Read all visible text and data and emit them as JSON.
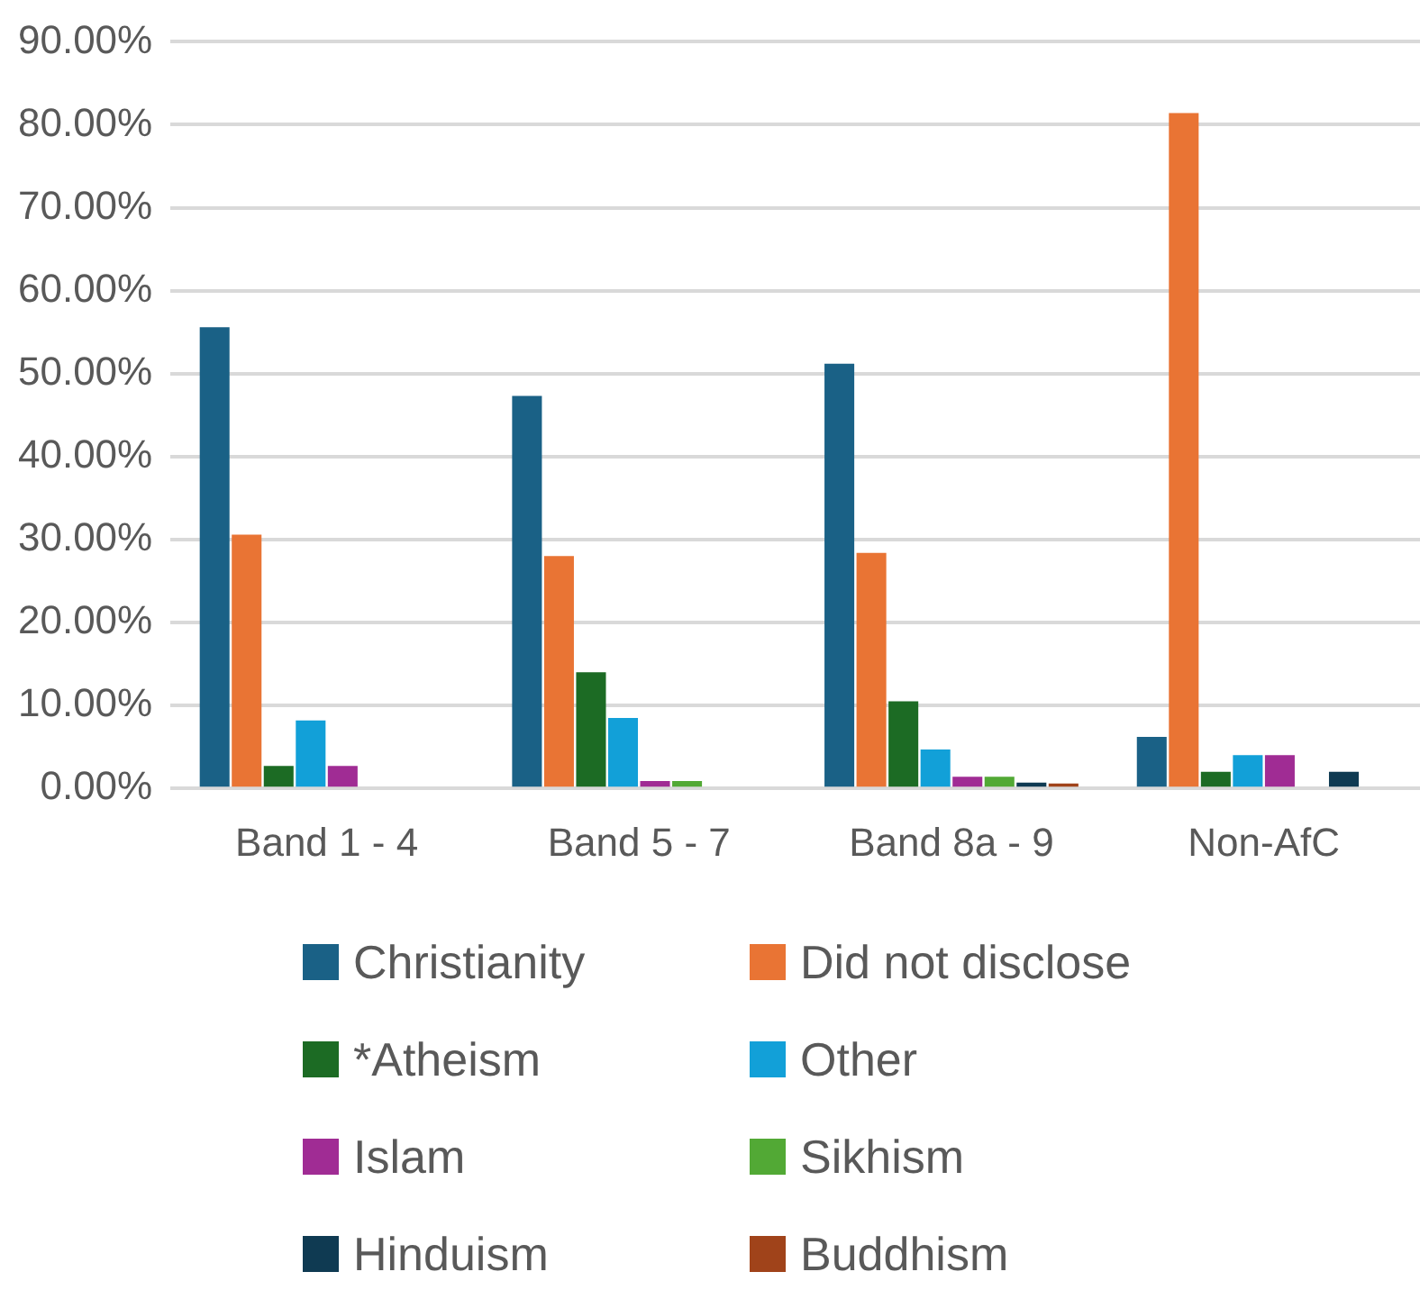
{
  "chart_data": {
    "type": "bar",
    "categories": [
      "Band 1 - 4",
      "Band 5 - 7",
      "Band 8a - 9",
      "Non-AfC"
    ],
    "series": [
      {
        "name": "Christianity",
        "color": "#1a6186",
        "values": [
          55.6,
          47.3,
          51.2,
          6.2
        ]
      },
      {
        "name": "Did not disclose",
        "color": "#e97434",
        "values": [
          30.6,
          28.0,
          28.4,
          81.4
        ]
      },
      {
        "name": "*Atheism",
        "color": "#1c6b24",
        "values": [
          2.7,
          14.0,
          10.5,
          2.0
        ]
      },
      {
        "name": "Other",
        "color": "#12a0d8",
        "values": [
          8.2,
          8.5,
          4.7,
          4.0
        ]
      },
      {
        "name": "Islam",
        "color": "#a02c94",
        "values": [
          2.7,
          0.9,
          1.4,
          4.0
        ]
      },
      {
        "name": "Sikhism",
        "color": "#52a935",
        "values": [
          null,
          0.9,
          1.4,
          null
        ]
      },
      {
        "name": "Hinduism",
        "color": "#0f3a52",
        "values": [
          null,
          null,
          0.7,
          2.0
        ]
      },
      {
        "name": "Buddhism",
        "color": "#a0431a",
        "values": [
          null,
          null,
          0.6,
          null
        ]
      }
    ],
    "ylim": [
      0,
      90
    ],
    "yticks": [
      {
        "value": 0,
        "label": "0.00%"
      },
      {
        "value": 10,
        "label": "10.00%"
      },
      {
        "value": 20,
        "label": "20.00%"
      },
      {
        "value": 30,
        "label": "30.00%"
      },
      {
        "value": 40,
        "label": "40.00%"
      },
      {
        "value": 50,
        "label": "50.00%"
      },
      {
        "value": 60,
        "label": "60.00%"
      },
      {
        "value": 70,
        "label": "70.00%"
      },
      {
        "value": 80,
        "label": "80.00%"
      },
      {
        "value": 90,
        "label": "90.00%"
      }
    ],
    "grid": "y",
    "legend": "bottom"
  }
}
